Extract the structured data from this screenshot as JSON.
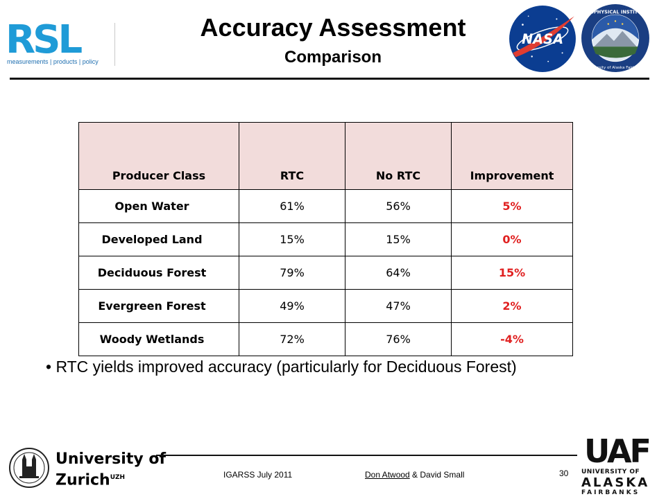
{
  "header": {
    "title": "Accuracy Assessment",
    "subtitle": "Comparison",
    "rsl_logo_text": "RSL",
    "rsl_tagline": "measurements | products | policy",
    "nasa_logo_text": "NASA",
    "gi_seal_text_top": "GEOPHYSICAL INSTITUTE",
    "gi_seal_text_bottom": "University of Alaska Fairbanks"
  },
  "table": {
    "columns": [
      "Producer Class",
      "RTC",
      "No RTC",
      "Improvement"
    ],
    "rows": [
      {
        "class": "Open Water",
        "rtc": "61%",
        "no_rtc": "56%",
        "improvement": "5%"
      },
      {
        "class": "Developed Land",
        "rtc": "15%",
        "no_rtc": "15%",
        "improvement": "0%"
      },
      {
        "class": "Deciduous Forest",
        "rtc": "79%",
        "no_rtc": "64%",
        "improvement": "15%"
      },
      {
        "class": "Evergreen Forest",
        "rtc": "49%",
        "no_rtc": "47%",
        "improvement": "2%"
      },
      {
        "class": "Woody Wetlands",
        "rtc": "72%",
        "no_rtc": "76%",
        "improvement": "-4%"
      }
    ]
  },
  "bullet": "• RTC yields improved accuracy (particularly for Deciduous Forest)",
  "footer": {
    "conference": "IGARSS July 2011",
    "author_linked": "Don Atwood",
    "author_rest": " & David Small",
    "page_number": "30",
    "uzh_line1": "University of",
    "uzh_line2": "Zurich",
    "uzh_sup": "UZH",
    "uaf_mark": "UAF",
    "uaf_line1": "UNIVERSITY OF",
    "uaf_line2": "ALASKA",
    "uaf_line3": "FAIRBANKS"
  },
  "colors": {
    "header_fill": "#f2dcdb",
    "improvement_text": "#e02020",
    "rsl_blue": "#1f9bd7",
    "nasa_blue": "#0b3d91",
    "nasa_red": "#e03c31"
  }
}
